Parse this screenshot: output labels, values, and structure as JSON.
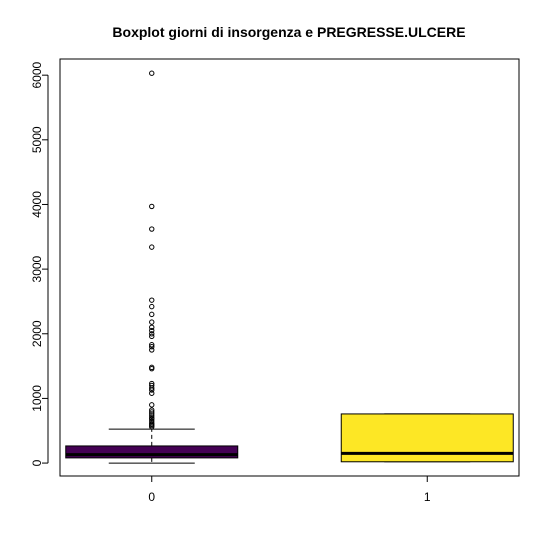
{
  "chart_data": {
    "type": "boxplot",
    "title": "Boxplot giorni di insorgenza e PREGRESSE.ULCERE",
    "xlabel": "",
    "ylabel": "",
    "categories": [
      "0",
      "1"
    ],
    "ylim": [
      -200,
      6250
    ],
    "yticks": [
      0,
      1000,
      2000,
      3000,
      4000,
      5000,
      6000
    ],
    "grid": false,
    "legend": "none",
    "boxes": [
      {
        "category": "0",
        "color": "#440154",
        "whisker_low": 0,
        "q1": 80,
        "median": 130,
        "q3": 265,
        "whisker_high": 525,
        "outliers": [
          560,
          580,
          600,
          620,
          650,
          680,
          700,
          730,
          760,
          790,
          820,
          900,
          1080,
          1130,
          1160,
          1200,
          1230,
          1460,
          1480,
          1750,
          1800,
          1830,
          1960,
          2000,
          2050,
          2100,
          2180,
          2300,
          2420,
          2520,
          3340,
          3620,
          3970,
          6030
        ]
      },
      {
        "category": "1",
        "color": "#FDE725",
        "whisker_low": 20,
        "q1": 20,
        "median": 150,
        "q3": 760,
        "whisker_high": 760,
        "outliers": []
      }
    ]
  }
}
